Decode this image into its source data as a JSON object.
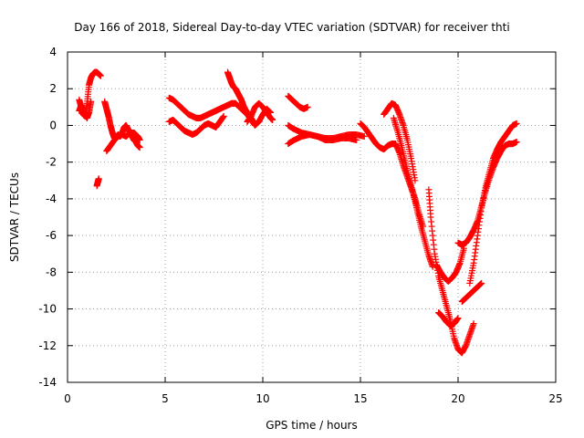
{
  "chart_data": {
    "type": "scatter",
    "title": "Day 166 of 2018, Sidereal Day-to-day VTEC variation (SDTVAR) for receiver thti",
    "xlabel": "GPS time / hours",
    "ylabel": "SDTVAR / TECUs",
    "xlim": [
      0,
      25
    ],
    "ylim": [
      -14,
      4
    ],
    "xticks": [
      0,
      5,
      10,
      15,
      20,
      25
    ],
    "yticks": [
      4,
      2,
      0,
      -2,
      -4,
      -6,
      -8,
      -10,
      -12,
      -14
    ],
    "grid": true,
    "marker": "+",
    "color": "#ff0000",
    "series": [
      {
        "x": [
          0.6,
          0.7,
          0.8,
          0.9,
          1.0,
          1.1,
          1.2,
          1.3,
          1.4,
          1.5,
          1.6,
          1.7
        ],
        "y": [
          1.4,
          1.0,
          0.6,
          0.5,
          1.2,
          2.2,
          2.6,
          2.8,
          2.9,
          2.9,
          2.8,
          2.7
        ]
      },
      {
        "x": [
          0.6,
          0.7,
          0.8,
          0.9,
          1.0,
          1.1,
          1.2
        ],
        "y": [
          0.8,
          1.1,
          0.9,
          0.6,
          0.4,
          0.7,
          1.3
        ]
      },
      {
        "x": [
          1.5,
          1.55,
          1.6
        ],
        "y": [
          -3.3,
          -3.1,
          -2.9
        ]
      },
      {
        "x": [
          1.9,
          2.0,
          2.1,
          2.2,
          2.3,
          2.4,
          2.5,
          2.6,
          2.7,
          2.8,
          2.9,
          3.0,
          3.1,
          3.2,
          3.3,
          3.4,
          3.5,
          3.6,
          3.7
        ],
        "y": [
          1.3,
          0.9,
          0.5,
          0.0,
          -0.4,
          -0.7,
          -0.6,
          -0.5,
          -0.6,
          -0.4,
          -0.1,
          0.0,
          -0.2,
          -0.4,
          -0.6,
          -0.8,
          -0.9,
          -1.1,
          -1.2
        ]
      },
      {
        "x": [
          2.0,
          2.2,
          2.4,
          2.6,
          2.8,
          3.0,
          3.2,
          3.4,
          3.6,
          3.7
        ],
        "y": [
          -1.4,
          -1.1,
          -0.8,
          -0.6,
          -0.5,
          -0.6,
          -0.4,
          -0.4,
          -0.6,
          -0.8
        ]
      },
      {
        "x": [
          5.2,
          5.4,
          5.6,
          5.8,
          6.0,
          6.2,
          6.4,
          6.6,
          6.8,
          7.0,
          7.2,
          7.4,
          7.6,
          7.8,
          8.0,
          8.2,
          8.4,
          8.6,
          8.8,
          9.0,
          9.2,
          9.4,
          9.6,
          9.8,
          10.0,
          10.2,
          10.4
        ],
        "y": [
          1.5,
          1.4,
          1.2,
          1.0,
          0.8,
          0.6,
          0.5,
          0.4,
          0.4,
          0.5,
          0.6,
          0.7,
          0.8,
          0.9,
          1.0,
          1.1,
          1.2,
          1.2,
          1.0,
          0.8,
          0.6,
          0.3,
          0.0,
          0.2,
          0.6,
          0.9,
          0.7
        ]
      },
      {
        "x": [
          5.2,
          5.4,
          5.6,
          5.8,
          6.0,
          6.2,
          6.4,
          6.6,
          6.8,
          7.0,
          7.2,
          7.4,
          7.6,
          7.8,
          8.0
        ],
        "y": [
          0.2,
          0.3,
          0.1,
          -0.1,
          -0.3,
          -0.4,
          -0.5,
          -0.4,
          -0.2,
          0.0,
          0.1,
          0.0,
          -0.1,
          0.2,
          0.5
        ]
      },
      {
        "x": [
          8.2,
          8.3,
          8.4,
          8.5,
          8.6,
          8.7,
          8.8,
          8.9,
          9.0,
          9.2,
          9.4,
          9.6
        ],
        "y": [
          2.9,
          2.6,
          2.3,
          2.1,
          2.0,
          1.8,
          1.6,
          1.4,
          1.1,
          0.7,
          0.4,
          0.1
        ]
      },
      {
        "x": [
          9.2,
          9.4,
          9.6,
          9.8,
          10.0,
          10.2,
          10.4,
          10.5
        ],
        "y": [
          0.2,
          0.5,
          1.0,
          1.2,
          1.0,
          0.7,
          0.4,
          0.3
        ]
      },
      {
        "x": [
          11.3,
          11.5,
          11.7,
          11.9,
          12.1,
          12.3
        ],
        "y": [
          1.6,
          1.4,
          1.2,
          1.0,
          0.9,
          1.0
        ]
      },
      {
        "x": [
          11.3,
          11.6,
          12.0,
          12.4,
          12.8,
          13.2,
          13.6,
          14.0,
          14.4,
          14.8,
          15.2
        ],
        "y": [
          0.0,
          -0.2,
          -0.4,
          -0.5,
          -0.6,
          -0.7,
          -0.7,
          -0.6,
          -0.5,
          -0.5,
          -0.6
        ]
      },
      {
        "x": [
          11.3,
          11.6,
          12.0,
          12.4,
          12.8,
          13.2,
          13.6,
          14.0,
          14.4,
          14.8
        ],
        "y": [
          -1.0,
          -0.8,
          -0.6,
          -0.5,
          -0.6,
          -0.8,
          -0.8,
          -0.7,
          -0.7,
          -0.8
        ]
      },
      {
        "x": [
          15.0,
          15.2,
          15.4,
          15.6,
          15.8,
          16.0,
          16.2,
          16.4,
          16.6,
          16.8,
          17.0,
          17.2,
          17.4,
          17.6,
          17.8,
          18.0,
          18.2
        ],
        "y": [
          0.1,
          -0.1,
          -0.4,
          -0.7,
          -1.0,
          -1.2,
          -1.3,
          -1.1,
          -1.0,
          -1.0,
          -1.5,
          -2.2,
          -2.8,
          -3.4,
          -4.0,
          -4.8,
          -5.5
        ]
      },
      {
        "x": [
          16.2,
          16.4,
          16.6,
          16.8,
          17.0,
          17.2,
          17.4,
          17.6,
          17.8
        ],
        "y": [
          0.6,
          0.9,
          1.2,
          1.1,
          0.6,
          0.0,
          -0.8,
          -1.8,
          -3.0
        ]
      },
      {
        "x": [
          16.7,
          16.9,
          17.1,
          17.3,
          17.5,
          17.7,
          17.9,
          18.1,
          18.3,
          18.5,
          18.7
        ],
        "y": [
          0.4,
          -0.3,
          -1.1,
          -2.0,
          -2.9,
          -3.7,
          -4.6,
          -5.5,
          -6.3,
          -7.1,
          -7.7
        ]
      },
      {
        "x": [
          18.5,
          18.6,
          18.8,
          19.0,
          19.2,
          19.4,
          19.6,
          19.8,
          20.0,
          20.2,
          20.4,
          20.6,
          20.8
        ],
        "y": [
          -3.5,
          -5.0,
          -7.0,
          -8.2,
          -9.0,
          -9.8,
          -10.6,
          -11.6,
          -12.2,
          -12.4,
          -12.0,
          -11.4,
          -10.8
        ]
      },
      {
        "x": [
          18.9,
          19.1,
          19.3,
          19.5,
          19.7,
          19.9,
          20.1,
          20.3
        ],
        "y": [
          -7.6,
          -8.0,
          -8.3,
          -8.5,
          -8.3,
          -8.0,
          -7.5,
          -6.7
        ]
      },
      {
        "x": [
          19.0,
          19.2,
          19.4,
          19.6,
          19.8,
          20.0
        ],
        "y": [
          -10.2,
          -10.4,
          -10.7,
          -10.9,
          -10.8,
          -10.5
        ]
      },
      {
        "x": [
          20.2,
          20.4,
          20.6,
          20.8,
          21.0,
          21.2
        ],
        "y": [
          -9.6,
          -9.4,
          -9.2,
          -9.0,
          -8.8,
          -8.6
        ]
      },
      {
        "x": [
          20.0,
          20.2,
          20.4,
          20.6,
          20.8,
          21.0,
          21.2,
          21.4,
          21.6,
          21.8,
          22.0,
          22.2,
          22.4,
          22.6,
          22.8,
          23.0
        ],
        "y": [
          -6.4,
          -6.5,
          -6.4,
          -6.1,
          -5.7,
          -5.2,
          -4.4,
          -3.6,
          -2.9,
          -2.3,
          -1.8,
          -1.4,
          -1.1,
          -1.0,
          -1.0,
          -0.9
        ]
      },
      {
        "x": [
          20.6,
          20.8,
          21.0,
          21.2,
          21.4,
          21.6,
          21.8,
          22.0,
          22.2,
          22.4,
          22.6,
          22.8,
          23.0
        ],
        "y": [
          -8.6,
          -7.5,
          -6.0,
          -4.5,
          -3.4,
          -2.6,
          -1.8,
          -1.3,
          -0.9,
          -0.6,
          -0.3,
          0.0,
          0.1
        ]
      }
    ]
  }
}
